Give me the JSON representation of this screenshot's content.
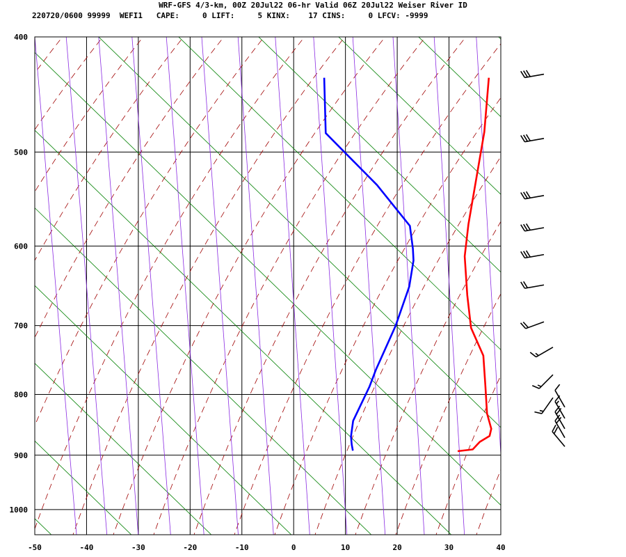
{
  "header": {
    "title": "WRF-GFS 4/3-km, 00Z 20Jul22 06-hr Valid 06Z 20Jul22 Weiser River ID",
    "info": "220720/0600 99999  WEFI1   CAPE:     0 LIFT:     5 KINX:    17 CINS:     0 LFCV: -9999"
  },
  "colors": {
    "temperature": "#ff0000",
    "dewpoint": "#0000ff",
    "isotherm": "#000000",
    "dry_adiabat": "#008000",
    "moist_adiabat": "#a00000",
    "mixing_ratio": "#8a2be2",
    "wind_barb": "#000000"
  },
  "chart_data": {
    "type": "line",
    "chart_kind": "skew-T log-P sounding",
    "x_axis": {
      "ticks": [
        -50,
        -40,
        -30,
        -20,
        -10,
        0,
        10,
        20,
        30,
        40
      ],
      "range": [
        -50,
        40
      ],
      "units": "degC"
    },
    "y_axis": {
      "ticks": [
        400,
        500,
        600,
        700,
        800,
        900,
        1000
      ],
      "range": [
        400,
        1050
      ],
      "scale": "log",
      "units": "hPa"
    },
    "grid": true,
    "series": [
      {
        "key": "temperature",
        "points": [
          [
            -15.2,
            433
          ],
          [
            -9.8,
            481
          ],
          [
            -2.2,
            575
          ],
          [
            0.8,
            612
          ],
          [
            5.8,
            660
          ],
          [
            10.3,
            703
          ],
          [
            15.9,
            742
          ],
          [
            19.9,
            788
          ],
          [
            23.3,
            830
          ],
          [
            25.9,
            855
          ],
          [
            26.4,
            867
          ],
          [
            25.2,
            877
          ],
          [
            24.7,
            890
          ],
          [
            22.0,
            893
          ]
        ]
      },
      {
        "key": "dewpoint",
        "points": [
          [
            -47.0,
            433
          ],
          [
            -40.3,
            482
          ],
          [
            -24.4,
            533
          ],
          [
            -13.3,
            577
          ],
          [
            -10.1,
            603
          ],
          [
            -8.6,
            617
          ],
          [
            -6.4,
            649
          ],
          [
            -4.5,
            700
          ],
          [
            -3.2,
            763
          ],
          [
            -2.5,
            788
          ],
          [
            -1.7,
            842
          ],
          [
            -0.3,
            868
          ],
          [
            0.8,
            882
          ],
          [
            1.7,
            892
          ]
        ]
      }
    ],
    "wind_barbs": [
      {
        "p": 430,
        "dir": 260,
        "spd": 30
      },
      {
        "p": 487,
        "dir": 260,
        "spd": 30
      },
      {
        "p": 544,
        "dir": 260,
        "spd": 30
      },
      {
        "p": 579,
        "dir": 260,
        "spd": 30
      },
      {
        "p": 610,
        "dir": 260,
        "spd": 30
      },
      {
        "p": 647,
        "dir": 260,
        "spd": 20
      },
      {
        "p": 695,
        "dir": 250,
        "spd": 20
      },
      {
        "p": 730,
        "dir": 240,
        "spd": 15
      },
      {
        "p": 770,
        "dir": 225,
        "spd": 15
      },
      {
        "p": 805,
        "dir": 215,
        "spd": 15
      },
      {
        "p": 820,
        "dir": 330,
        "spd": 10
      },
      {
        "p": 838,
        "dir": 330,
        "spd": 15
      },
      {
        "p": 855,
        "dir": 330,
        "spd": 20
      },
      {
        "p": 870,
        "dir": 330,
        "spd": 20
      },
      {
        "p": 885,
        "dir": 320,
        "spd": 20
      }
    ]
  }
}
